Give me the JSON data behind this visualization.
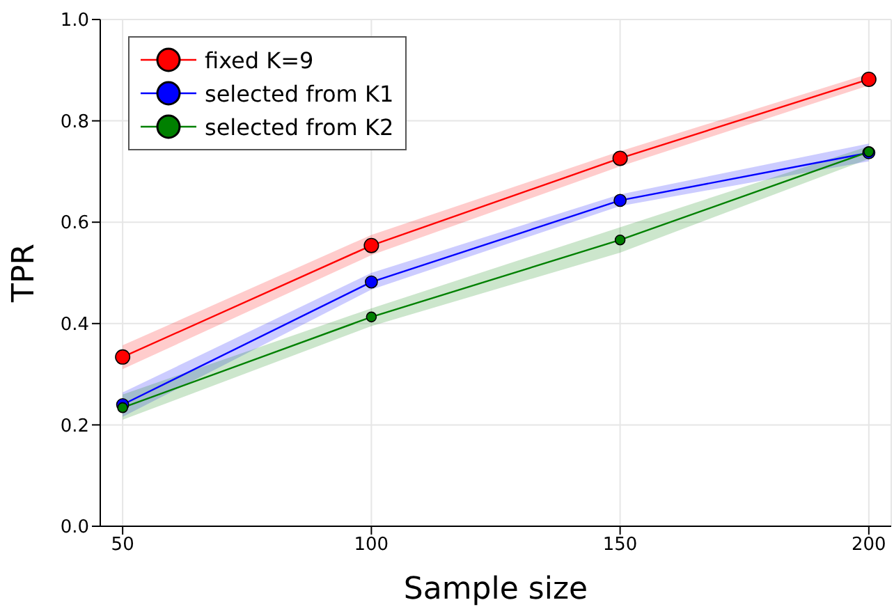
{
  "chart_data": {
    "type": "line",
    "xlabel": "Sample size",
    "ylabel": "TPR",
    "x": [
      50,
      100,
      150,
      200
    ],
    "series": [
      {
        "name": "fixed K=9",
        "color": "#ff0000",
        "values": [
          0.334,
          0.554,
          0.726,
          0.882
        ],
        "lower": [
          0.31,
          0.535,
          0.71,
          0.87
        ],
        "upper": [
          0.357,
          0.575,
          0.74,
          0.893
        ]
      },
      {
        "name": "selected from K1",
        "color": "#0000ff",
        "values": [
          0.24,
          0.482,
          0.643,
          0.737
        ],
        "lower": [
          0.216,
          0.467,
          0.632,
          0.72
        ],
        "upper": [
          0.264,
          0.5,
          0.655,
          0.755
        ]
      },
      {
        "name": "selected from K2",
        "color": "#008000",
        "values": [
          0.234,
          0.413,
          0.565,
          0.739
        ],
        "lower": [
          0.21,
          0.395,
          0.54,
          0.725
        ],
        "upper": [
          0.26,
          0.43,
          0.59,
          0.75
        ]
      }
    ],
    "xlim": [
      45.5,
      204.5
    ],
    "xticks": [
      50,
      100,
      150,
      200
    ],
    "ylim": [
      0,
      1
    ],
    "yticks": [
      {
        "value": 0,
        "label": "0.0"
      },
      0.2,
      0.4,
      0.6,
      0.8,
      {
        "value": 1,
        "label": "1.0"
      }
    ],
    "grid": true,
    "legend": "top left",
    "marker": "circle",
    "line_style": "solid"
  }
}
